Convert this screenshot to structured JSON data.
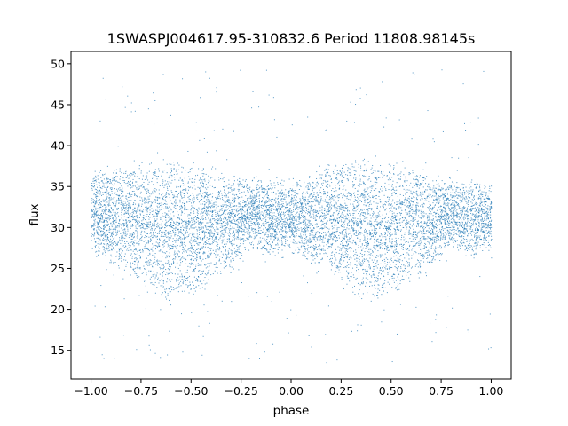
{
  "chart_data": {
    "type": "scatter",
    "title": "1SWASPJ004617.95-310832.6 Period 11808.98145s",
    "xlabel": "phase",
    "ylabel": "flux",
    "xlim": [
      -1.1,
      1.1
    ],
    "ylim": [
      11.5,
      51.5
    ],
    "xticks": [
      -1.0,
      -0.75,
      -0.5,
      -0.25,
      0.0,
      0.25,
      0.5,
      0.75,
      1.0
    ],
    "xtick_labels": [
      "−1.00",
      "−0.75",
      "−0.50",
      "−0.25",
      "0.00",
      "0.25",
      "0.50",
      "0.75",
      "1.00"
    ],
    "yticks": [
      15,
      20,
      25,
      30,
      35,
      40,
      45,
      50
    ],
    "ytick_labels": [
      "15",
      "20",
      "25",
      "30",
      "35",
      "40",
      "45",
      "50"
    ],
    "grid": false,
    "marker_color": "#1f77b4",
    "series": [
      {
        "x_range": [
          -1.0,
          1.0
        ],
        "upper_envelope": [
          [
            -1.0,
            36.5
          ],
          [
            -0.75,
            37.2
          ],
          [
            -0.6,
            37.5
          ],
          [
            -0.45,
            37.0
          ],
          [
            -0.25,
            35.5
          ],
          [
            0.0,
            35.0
          ],
          [
            0.25,
            37.2
          ],
          [
            0.4,
            37.5
          ],
          [
            0.55,
            37.0
          ],
          [
            0.75,
            35.5
          ],
          [
            1.0,
            35.0
          ]
        ],
        "lower_envelope": [
          [
            -1.0,
            27.5
          ],
          [
            -0.85,
            25.5
          ],
          [
            -0.7,
            23.0
          ],
          [
            -0.6,
            21.8
          ],
          [
            -0.5,
            22.5
          ],
          [
            -0.35,
            25.0
          ],
          [
            -0.2,
            28.0
          ],
          [
            -0.1,
            27.0
          ],
          [
            0.0,
            27.5
          ],
          [
            0.15,
            25.5
          ],
          [
            0.3,
            23.0
          ],
          [
            0.4,
            21.8
          ],
          [
            0.5,
            22.5
          ],
          [
            0.65,
            25.0
          ],
          [
            0.8,
            28.0
          ],
          [
            0.9,
            27.0
          ],
          [
            1.0,
            27.5
          ]
        ],
        "outlier_range": [
          13.5,
          49.5
        ]
      }
    ]
  }
}
